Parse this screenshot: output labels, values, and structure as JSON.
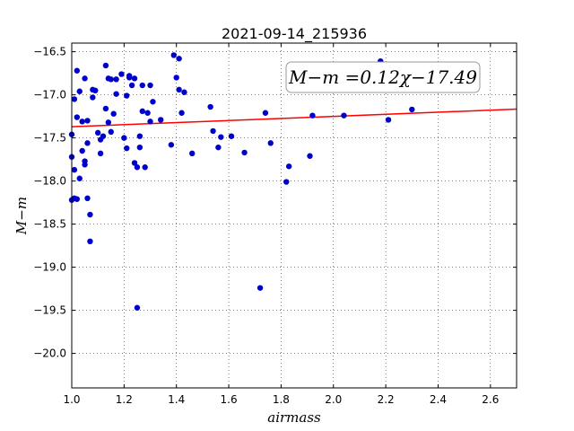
{
  "chart_data": {
    "type": "scatter",
    "title": "2021-09-14_215936",
    "xlabel": "airmass",
    "ylabel": "M−m",
    "xlim": [
      1.0,
      2.7
    ],
    "ylim": [
      -16.4,
      -20.4
    ],
    "y_inverted": true,
    "grid": true,
    "xticks": [
      "1.0",
      "1.2",
      "1.4",
      "1.6",
      "1.8",
      "2.0",
      "2.2",
      "2.4",
      "2.6"
    ],
    "yticks": [
      "−16.5",
      "−17.0",
      "−17.5",
      "−18.0",
      "−18.5",
      "−19.0",
      "−19.5",
      "−20.0"
    ],
    "xtick_values": [
      1.0,
      1.2,
      1.4,
      1.6,
      1.8,
      2.0,
      2.2,
      2.4,
      2.6
    ],
    "ytick_values": [
      -16.5,
      -17.0,
      -17.5,
      -18.0,
      -18.5,
      -19.0,
      -19.5,
      -20.0
    ],
    "annotation": "M−m =0.12χ−17.49",
    "fit": {
      "slope": 0.12,
      "intercept": -17.49,
      "color": "#ff0000"
    },
    "point_color": "#0000cc",
    "points": [
      [
        1.0,
        -17.46
      ],
      [
        1.0,
        -17.72
      ],
      [
        1.0,
        -18.22
      ],
      [
        1.01,
        -18.2
      ],
      [
        1.01,
        -17.05
      ],
      [
        1.01,
        -17.87
      ],
      [
        1.02,
        -16.72
      ],
      [
        1.02,
        -17.26
      ],
      [
        1.02,
        -18.21
      ],
      [
        1.03,
        -16.96
      ],
      [
        1.03,
        -17.97
      ],
      [
        1.04,
        -17.65
      ],
      [
        1.04,
        -17.31
      ],
      [
        1.05,
        -16.81
      ],
      [
        1.05,
        -17.77
      ],
      [
        1.05,
        -17.81
      ],
      [
        1.06,
        -17.3
      ],
      [
        1.06,
        -17.56
      ],
      [
        1.06,
        -18.2
      ],
      [
        1.07,
        -18.39
      ],
      [
        1.07,
        -18.7
      ],
      [
        1.08,
        -17.03
      ],
      [
        1.08,
        -16.94
      ],
      [
        1.09,
        -16.95
      ],
      [
        1.1,
        -17.44
      ],
      [
        1.11,
        -17.52
      ],
      [
        1.11,
        -17.68
      ],
      [
        1.12,
        -17.48
      ],
      [
        1.13,
        -16.66
      ],
      [
        1.13,
        -17.16
      ],
      [
        1.14,
        -17.32
      ],
      [
        1.14,
        -16.81
      ],
      [
        1.15,
        -16.82
      ],
      [
        1.15,
        -17.43
      ],
      [
        1.16,
        -17.22
      ],
      [
        1.17,
        -16.99
      ],
      [
        1.17,
        -16.82
      ],
      [
        1.19,
        -16.76
      ],
      [
        1.2,
        -17.5
      ],
      [
        1.21,
        -17.62
      ],
      [
        1.21,
        -17.01
      ],
      [
        1.22,
        -16.8
      ],
      [
        1.22,
        -16.78
      ],
      [
        1.23,
        -16.89
      ],
      [
        1.24,
        -16.81
      ],
      [
        1.24,
        -17.79
      ],
      [
        1.25,
        -17.84
      ],
      [
        1.25,
        -19.47
      ],
      [
        1.26,
        -17.61
      ],
      [
        1.26,
        -17.48
      ],
      [
        1.27,
        -16.89
      ],
      [
        1.27,
        -17.19
      ],
      [
        1.28,
        -17.84
      ],
      [
        1.29,
        -17.21
      ],
      [
        1.3,
        -16.89
      ],
      [
        1.3,
        -17.31
      ],
      [
        1.31,
        -17.08
      ],
      [
        1.34,
        -17.29
      ],
      [
        1.38,
        -17.58
      ],
      [
        1.39,
        -16.54
      ],
      [
        1.4,
        -16.8
      ],
      [
        1.41,
        -16.94
      ],
      [
        1.41,
        -16.58
      ],
      [
        1.42,
        -17.21
      ],
      [
        1.43,
        -16.97
      ],
      [
        1.46,
        -17.68
      ],
      [
        1.53,
        -17.14
      ],
      [
        1.54,
        -17.42
      ],
      [
        1.56,
        -17.61
      ],
      [
        1.57,
        -17.49
      ],
      [
        1.61,
        -17.48
      ],
      [
        1.66,
        -17.67
      ],
      [
        1.72,
        -19.24
      ],
      [
        1.74,
        -17.21
      ],
      [
        1.76,
        -17.56
      ],
      [
        1.82,
        -18.01
      ],
      [
        1.83,
        -17.83
      ],
      [
        1.91,
        -17.71
      ],
      [
        1.92,
        -17.24
      ],
      [
        2.04,
        -17.24
      ],
      [
        2.18,
        -16.61
      ],
      [
        2.21,
        -17.29
      ],
      [
        2.3,
        -17.17
      ]
    ]
  }
}
